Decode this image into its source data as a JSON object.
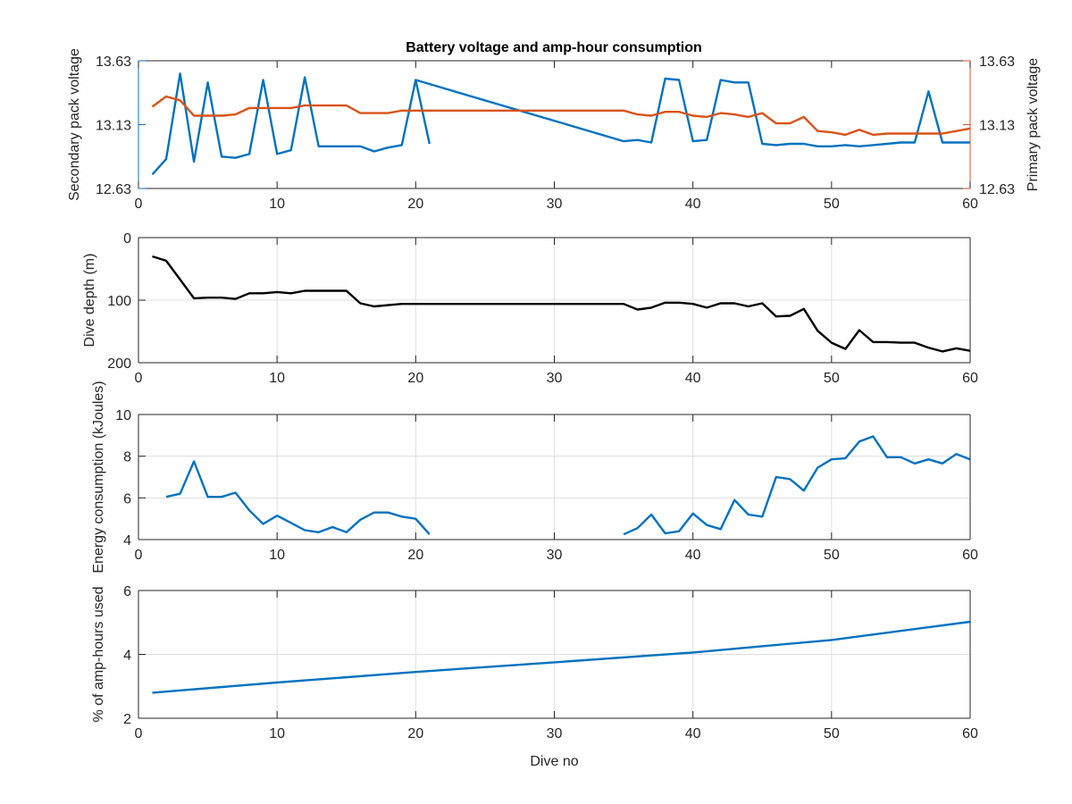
{
  "figure": {
    "title": "Battery voltage and amp-hour consumption",
    "xlabel": "Dive no"
  },
  "colors": {
    "secondary": "#0072BD",
    "primary": "#D95319",
    "depth": "#000000",
    "grid": "#dedede",
    "axis": "#262626"
  },
  "chart_data": [
    {
      "type": "line",
      "title": "Battery voltage and amp-hour consumption",
      "xlabel": "",
      "ylabel": "Secondary pack voltage",
      "y2label": "Primary pack voltage",
      "xlim": [
        0,
        60
      ],
      "ylim": [
        12.63,
        13.63
      ],
      "y2lim": [
        12.63,
        13.63
      ],
      "xticks": [
        0,
        10,
        20,
        30,
        40,
        50,
        60
      ],
      "yticks": [
        12.63,
        13.13,
        13.63
      ],
      "y2ticks": [
        12.63,
        13.13,
        13.63
      ],
      "grid": false,
      "series": [
        {
          "name": "",
          "axis": "left",
          "color": "#0072BD",
          "x": [
            1,
            2,
            3,
            4,
            5,
            6,
            7,
            8,
            9,
            10,
            11,
            12,
            13,
            14,
            15,
            16,
            17,
            18,
            19,
            20,
            21
          ],
          "y": [
            12.74,
            12.86,
            13.53,
            12.84,
            13.46,
            12.88,
            12.87,
            12.9,
            13.48,
            12.9,
            12.93,
            13.5,
            12.96,
            12.96,
            12.96,
            12.96,
            12.92,
            12.95,
            12.97,
            13.48,
            12.98
          ]
        },
        {
          "name": "",
          "axis": "left",
          "color": "#0072BD",
          "x": [
            20,
            35,
            36,
            37,
            38,
            39,
            40,
            41,
            42,
            43,
            44,
            45,
            46,
            47,
            48,
            49,
            50,
            51,
            52,
            53,
            54,
            55,
            56,
            57,
            58,
            59,
            60
          ],
          "y": [
            13.48,
            13.0,
            13.01,
            12.99,
            13.49,
            13.48,
            13.0,
            13.01,
            13.48,
            13.46,
            13.46,
            12.98,
            12.97,
            12.98,
            12.98,
            12.96,
            12.96,
            12.97,
            12.96,
            12.97,
            12.98,
            12.99,
            12.99,
            13.39,
            12.99,
            12.99,
            12.99
          ]
        },
        {
          "name": "",
          "axis": "right",
          "color": "#D95319",
          "x": [
            1,
            2,
            3,
            4,
            5,
            6,
            7,
            8,
            9,
            10,
            11,
            12,
            13,
            14,
            15,
            16,
            17,
            18,
            19,
            20,
            25,
            30,
            35,
            36,
            37,
            38,
            39,
            40,
            41,
            42,
            43,
            44,
            45,
            46,
            47,
            48,
            49,
            50,
            51,
            52,
            53,
            54,
            55,
            56,
            57,
            58,
            59,
            60
          ],
          "y": [
            13.27,
            13.35,
            13.32,
            13.2,
            13.2,
            13.2,
            13.21,
            13.26,
            13.26,
            13.26,
            13.26,
            13.28,
            13.28,
            13.28,
            13.28,
            13.22,
            13.22,
            13.22,
            13.24,
            13.24,
            13.24,
            13.24,
            13.24,
            13.21,
            13.2,
            13.23,
            13.23,
            13.2,
            13.19,
            13.22,
            13.21,
            13.19,
            13.22,
            13.14,
            13.14,
            13.19,
            13.08,
            13.07,
            13.05,
            13.09,
            13.05,
            13.06,
            13.06,
            13.06,
            13.06,
            13.06,
            13.08,
            13.1
          ]
        }
      ]
    },
    {
      "type": "line",
      "xlabel": "",
      "ylabel": "Dive depth (m)",
      "xlim": [
        0,
        60
      ],
      "ylim": [
        0,
        200
      ],
      "y_reversed": true,
      "xticks": [
        0,
        10,
        20,
        30,
        40,
        50,
        60
      ],
      "yticks": [
        0,
        100,
        200
      ],
      "grid": true,
      "series": [
        {
          "name": "",
          "color": "#000000",
          "x": [
            1,
            2,
            3,
            4,
            5,
            6,
            7,
            8,
            9,
            10,
            11,
            12,
            13,
            14,
            15,
            16,
            17,
            18,
            19,
            20,
            25,
            30,
            35,
            36,
            37,
            38,
            39,
            40,
            41,
            42,
            43,
            44,
            45,
            46,
            47,
            48,
            49,
            50,
            51,
            52,
            53,
            54,
            55,
            56,
            57,
            58,
            59,
            60
          ],
          "y": [
            30,
            37,
            67,
            97,
            96,
            96,
            98,
            89,
            89,
            87,
            89,
            85,
            85,
            85,
            85,
            105,
            110,
            108,
            106,
            106,
            106,
            106,
            106,
            115,
            112,
            104,
            104,
            106,
            112,
            105,
            105,
            110,
            105,
            126,
            125,
            114,
            149,
            168,
            178,
            148,
            167,
            167,
            168,
            168,
            176,
            182,
            177,
            181
          ]
        }
      ]
    },
    {
      "type": "line",
      "xlabel": "",
      "ylabel": "Energy consumption (kJoules)",
      "xlim": [
        0,
        60
      ],
      "ylim": [
        4,
        10
      ],
      "xticks": [
        0,
        10,
        20,
        30,
        40,
        50,
        60
      ],
      "yticks": [
        4,
        6,
        8,
        10
      ],
      "grid": true,
      "series": [
        {
          "name": "",
          "color": "#0072BD",
          "x": [
            2,
            3,
            4,
            5,
            6,
            7,
            8,
            9,
            10,
            11,
            12,
            13,
            14,
            15,
            16,
            17,
            18,
            19,
            20,
            21
          ],
          "y": [
            6.05,
            6.2,
            7.75,
            6.05,
            6.05,
            6.25,
            5.4,
            4.75,
            5.15,
            4.8,
            4.45,
            4.35,
            4.6,
            4.35,
            4.95,
            5.3,
            5.3,
            5.1,
            5.0,
            4.25
          ]
        },
        {
          "name": "",
          "color": "#0072BD",
          "x": [
            35,
            36,
            37,
            38,
            39,
            40,
            41,
            42,
            43,
            44,
            45,
            46,
            47,
            48,
            49,
            50,
            51,
            52,
            53,
            54,
            55,
            56,
            57,
            58,
            59,
            60
          ],
          "y": [
            4.25,
            4.55,
            5.2,
            4.3,
            4.4,
            5.25,
            4.7,
            4.5,
            5.9,
            5.2,
            5.1,
            7.0,
            6.9,
            6.35,
            7.45,
            7.85,
            7.9,
            8.7,
            8.95,
            7.95,
            7.95,
            7.65,
            7.85,
            7.65,
            8.1,
            7.85
          ]
        }
      ]
    },
    {
      "type": "line",
      "xlabel": "Dive no",
      "ylabel": "% of amp-hours used",
      "xlim": [
        0,
        60
      ],
      "ylim": [
        2,
        6
      ],
      "xticks": [
        0,
        10,
        20,
        30,
        40,
        50,
        60
      ],
      "yticks": [
        2,
        4,
        6
      ],
      "grid": true,
      "series": [
        {
          "name": "",
          "color": "#0072BD",
          "x": [
            1,
            10,
            20,
            30,
            40,
            50,
            60
          ],
          "y": [
            2.8,
            3.12,
            3.45,
            3.75,
            4.06,
            4.45,
            5.02
          ]
        }
      ]
    }
  ]
}
